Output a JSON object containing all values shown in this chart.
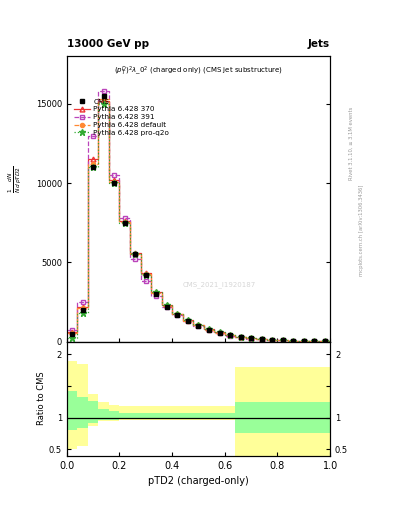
{
  "title_top": "13000 GeV pp",
  "title_right": "Jets",
  "plot_title": "$(p_T^D)^2\\lambda\\_0^2$ (charged only) (CMS jet substructure)",
  "xlabel": "pTD2 (charged-only)",
  "ylabel_ratio": "Ratio to CMS",
  "watermark": "CMS_2021_I1920187",
  "x_bins": [
    0.0,
    0.04,
    0.08,
    0.12,
    0.16,
    0.2,
    0.24,
    0.28,
    0.32,
    0.36,
    0.4,
    0.44,
    0.48,
    0.52,
    0.56,
    0.6,
    0.64,
    0.68,
    0.72,
    0.76,
    0.8,
    0.84,
    0.88,
    0.92,
    0.96,
    1.0
  ],
  "cms_y": [
    500,
    2000,
    11000,
    15500,
    10000,
    7500,
    5500,
    4200,
    3000,
    2200,
    1700,
    1300,
    1000,
    750,
    550,
    400,
    300,
    200,
    150,
    120,
    90,
    60,
    40,
    25,
    15
  ],
  "py370_y": [
    600,
    2200,
    11500,
    15200,
    10200,
    7600,
    5600,
    4300,
    3100,
    2300,
    1750,
    1350,
    1050,
    780,
    580,
    420,
    310,
    210,
    155,
    125,
    95,
    65,
    42,
    27,
    16
  ],
  "py391_y": [
    700,
    2500,
    13000,
    15800,
    10500,
    7800,
    5200,
    3800,
    2900,
    2200,
    1700,
    1300,
    1000,
    750,
    550,
    380,
    280,
    190,
    140,
    110,
    85,
    55,
    38,
    24,
    14
  ],
  "pydef_y": [
    550,
    2100,
    11200,
    15300,
    10100,
    7550,
    5500,
    4250,
    3050,
    2250,
    1720,
    1320,
    1030,
    760,
    560,
    410,
    305,
    205,
    150,
    122,
    92,
    62,
    41,
    26,
    15
  ],
  "pyq2o_y": [
    200,
    1800,
    11000,
    15000,
    10000,
    7500,
    5500,
    4200,
    3100,
    2300,
    1750,
    1350,
    1050,
    780,
    580,
    420,
    310,
    210,
    155,
    125,
    95,
    65,
    42,
    27,
    16
  ],
  "ratio_yellow_lo": [
    0.5,
    0.55,
    0.87,
    0.94,
    0.95,
    0.96,
    0.96,
    0.96,
    0.96,
    0.96,
    0.96,
    0.96,
    0.96,
    0.96,
    0.96,
    0.96,
    0.4,
    0.4,
    0.4,
    0.4,
    0.4,
    0.4,
    0.4,
    0.4,
    0.4
  ],
  "ratio_yellow_hi": [
    1.9,
    1.85,
    1.38,
    1.25,
    1.2,
    1.18,
    1.18,
    1.18,
    1.18,
    1.18,
    1.18,
    1.18,
    1.18,
    1.18,
    1.18,
    1.18,
    1.8,
    1.8,
    1.8,
    1.8,
    1.8,
    1.8,
    1.8,
    1.8,
    1.8
  ],
  "ratio_green_lo": [
    0.8,
    0.83,
    0.92,
    0.96,
    0.97,
    0.98,
    0.98,
    0.98,
    0.98,
    0.98,
    0.98,
    0.98,
    0.98,
    0.98,
    0.98,
    0.98,
    0.75,
    0.75,
    0.75,
    0.75,
    0.75,
    0.75,
    0.75,
    0.75,
    0.75
  ],
  "ratio_green_hi": [
    1.42,
    1.32,
    1.26,
    1.13,
    1.1,
    1.08,
    1.08,
    1.08,
    1.08,
    1.08,
    1.08,
    1.08,
    1.08,
    1.08,
    1.08,
    1.08,
    1.25,
    1.25,
    1.25,
    1.25,
    1.25,
    1.25,
    1.25,
    1.25,
    1.25
  ],
  "ylim_main": [
    0,
    18000
  ],
  "yticks_main": [
    0,
    5000,
    10000,
    15000
  ],
  "ytick_labels_main": [
    "0",
    "5000",
    "10000",
    "15000"
  ],
  "ylim_ratio": [
    0.4,
    2.2
  ],
  "yticks_ratio": [
    0.5,
    1.0,
    1.5,
    2.0
  ],
  "ytick_labels_ratio": [
    "0.5",
    "1",
    "",
    "2"
  ],
  "color_370": "#ee3333",
  "color_391": "#bb44bb",
  "color_def": "#ff8833",
  "color_q2o": "#33aa33",
  "color_cms": "black",
  "color_yellow": "#ffff99",
  "color_green": "#99ff99",
  "right_label1": "Rivet 3.1.10, ≥ 3.1M events",
  "right_label2": "mcplots.cern.ch [arXiv:1306.3436]"
}
